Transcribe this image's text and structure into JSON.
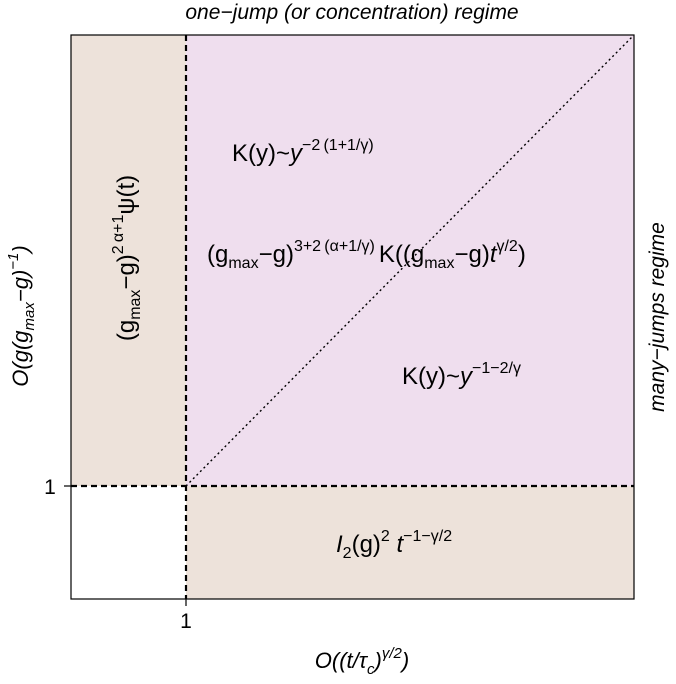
{
  "top_title": "one−jump (or concentration) regime",
  "right_title": "many−jumps regime",
  "x_axis": {
    "label_main": "O((t/τ",
    "label_sub": "c",
    "label_close": ")",
    "label_sup": "γ/2",
    "label_end": ")",
    "tick": "1"
  },
  "y_axis": {
    "label_main": "O(g(g",
    "label_sub": "max",
    "label_mid": "−g)",
    "label_sup": "−1",
    "label_end": ")",
    "tick": "1"
  },
  "regions": {
    "left_strip": {
      "p1": "(g",
      "sub": "max",
      "p2": "−g)",
      "sup1": "2 α+1",
      "p3": "ψ(t)"
    },
    "upper_kernel": {
      "p1": "K(y)~",
      "var": "y",
      "sup": "−2 (1+1/γ)"
    },
    "middle_formula": {
      "p1": "(g",
      "sub1": "max",
      "p2": "−g)",
      "sup1": "3+2 (α+1/γ)",
      "p3": "K((g",
      "sub2": "max",
      "p4": "−g)",
      "p5": "t",
      "sup2": "γ/2",
      "p6": ")"
    },
    "lower_kernel": {
      "p1": "K(y)~",
      "var": "y",
      "sup": "−1−2/γ"
    },
    "bottom_strip": {
      "p1": "I",
      "sub": "2",
      "p2": "(g)",
      "sup1": "2",
      "p3": " t",
      "sup2": "−1−γ/2"
    }
  },
  "colors": {
    "tan": "#ede2da",
    "lavender": "#efdeee",
    "white": "#ffffff",
    "line": "#000000"
  }
}
